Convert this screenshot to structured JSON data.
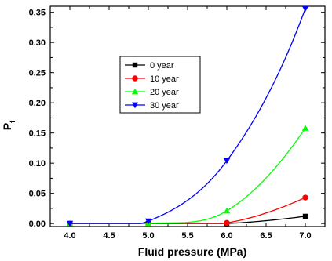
{
  "chart_data": {
    "type": "line",
    "title": "",
    "xlabel": "Fluid pressure (MPa)",
    "ylabel_main": "P",
    "ylabel_sub": "f",
    "xlim": [
      3.75,
      7.25
    ],
    "ylim": [
      -0.005,
      0.36
    ],
    "xticks": [
      4.0,
      4.5,
      5.0,
      5.5,
      6.0,
      6.5,
      7.0
    ],
    "xtick_labels": [
      "4.0",
      "4.5",
      "5.0",
      "5.5",
      "6.0",
      "6.5",
      "7.0"
    ],
    "yticks": [
      0.0,
      0.05,
      0.1,
      0.15,
      0.2,
      0.25,
      0.3,
      0.35
    ],
    "ytick_labels": [
      "0.00",
      "0.05",
      "0.10",
      "0.15",
      "0.20",
      "0.25",
      "0.30",
      "0.35"
    ],
    "grid": false,
    "legend_position": "upper-center-left",
    "x": [
      4.0,
      5.0,
      6.0,
      7.0
    ],
    "series": [
      {
        "name": "0 year",
        "color": "#000000",
        "marker": "square",
        "values": [
          0.0,
          0.0,
          0.0,
          0.012
        ]
      },
      {
        "name": "10 year",
        "color": "#ff0000",
        "marker": "circle",
        "values": [
          0.0,
          0.0,
          0.001,
          0.043
        ]
      },
      {
        "name": "20 year",
        "color": "#00ff00",
        "marker": "triangle-up",
        "values": [
          0.0,
          0.0,
          0.021,
          0.158
        ]
      },
      {
        "name": "30 year",
        "color": "#0000ff",
        "marker": "triangle-down",
        "values": [
          0.0,
          0.004,
          0.104,
          0.356
        ]
      }
    ]
  }
}
